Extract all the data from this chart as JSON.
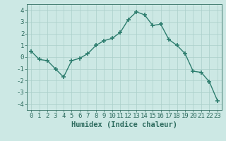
{
  "x": [
    0,
    1,
    2,
    3,
    4,
    5,
    6,
    7,
    8,
    9,
    10,
    11,
    12,
    13,
    14,
    15,
    16,
    17,
    18,
    19,
    20,
    21,
    22,
    23
  ],
  "y": [
    0.5,
    -0.2,
    -0.3,
    -1.0,
    -1.7,
    -0.3,
    -0.1,
    0.3,
    1.0,
    1.4,
    1.6,
    2.1,
    3.2,
    3.85,
    3.6,
    2.7,
    2.8,
    1.5,
    1.0,
    0.3,
    -1.2,
    -1.3,
    -2.1,
    -3.7
  ],
  "line_color": "#2d7d6e",
  "marker": "+",
  "marker_size": 4,
  "marker_lw": 1.2,
  "line_width": 1.0,
  "bg_color": "#cce8e4",
  "grid_color": "#aacfca",
  "xlabel": "Humidex (Indice chaleur)",
  "ylim": [
    -4.5,
    4.5
  ],
  "xlim": [
    -0.5,
    23.5
  ],
  "yticks": [
    -4,
    -3,
    -2,
    -1,
    0,
    1,
    2,
    3,
    4
  ],
  "xticks": [
    0,
    1,
    2,
    3,
    4,
    5,
    6,
    7,
    8,
    9,
    10,
    11,
    12,
    13,
    14,
    15,
    16,
    17,
    18,
    19,
    20,
    21,
    22,
    23
  ],
  "tick_fontsize": 6.5,
  "xlabel_fontsize": 7.5,
  "label_color": "#2d6b5e"
}
